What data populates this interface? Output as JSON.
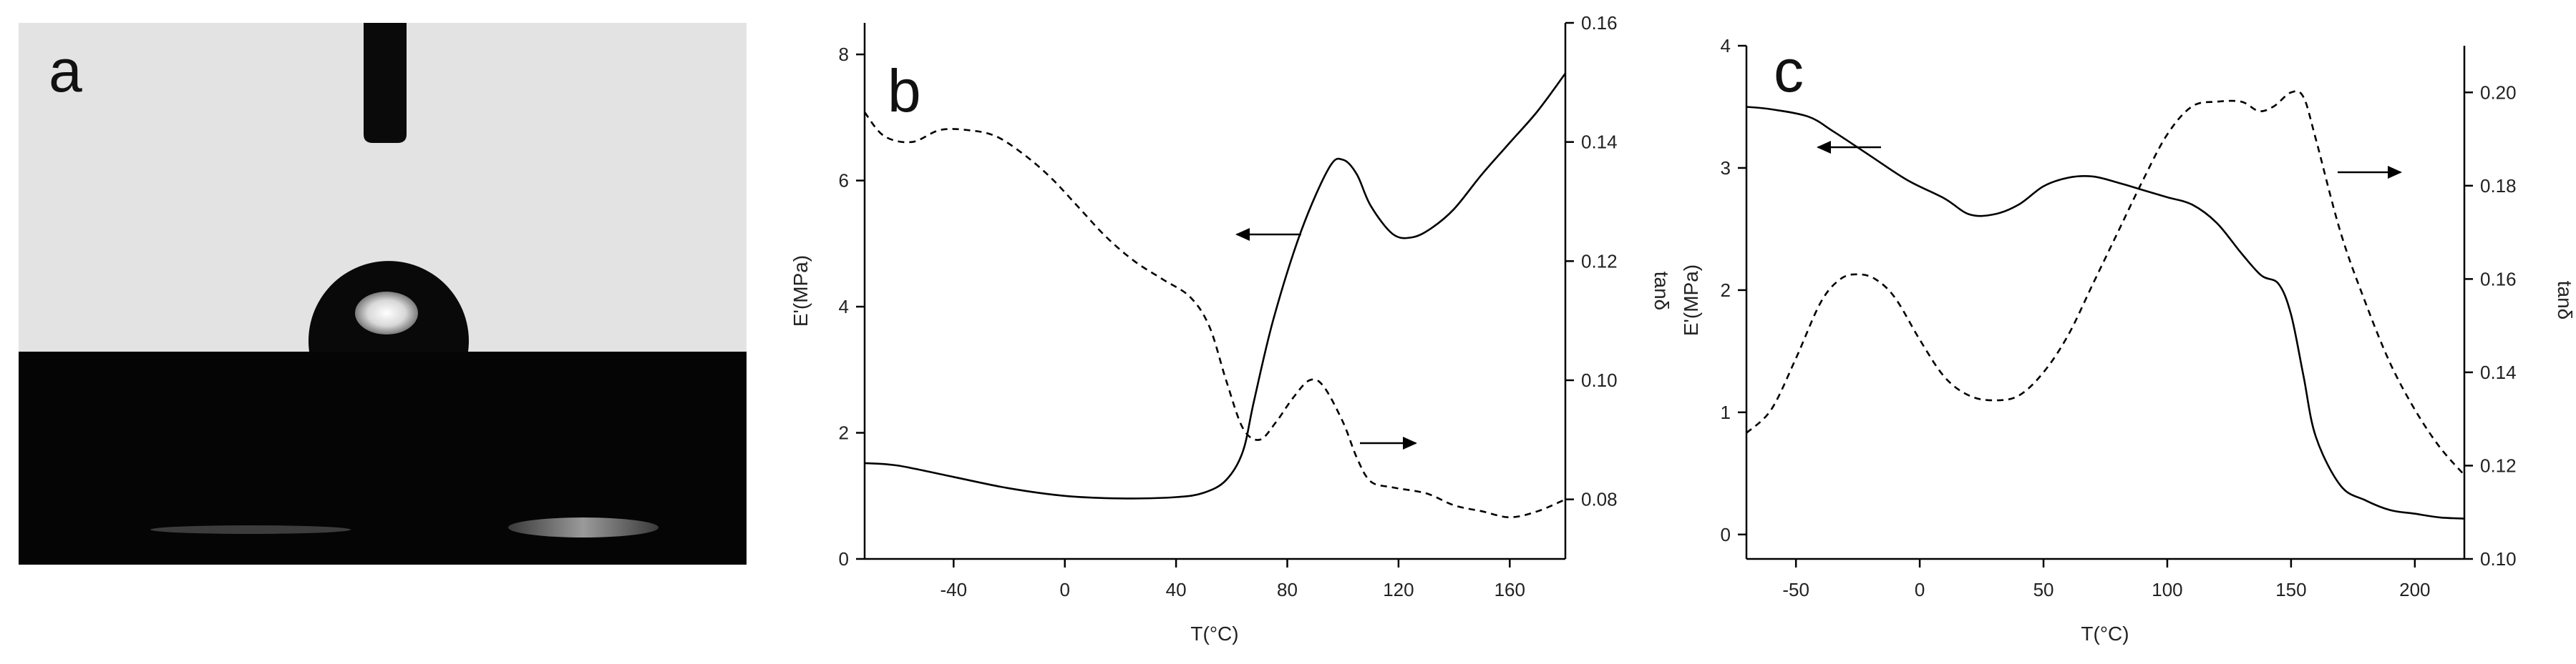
{
  "panels": {
    "a": {
      "label": "a"
    },
    "b": {
      "label": "b"
    },
    "c": {
      "label": "c"
    }
  },
  "colors": {
    "line": "#000000",
    "image_bg": "#e3e3e3",
    "substrate": "#050505"
  },
  "chart_data": [
    {
      "id": "b",
      "type": "line",
      "title": "",
      "xlabel": "T(°C)",
      "ylabel": "E'(MPa)",
      "y2label": "tanδ",
      "xlim": [
        -72,
        180
      ],
      "ylim": [
        0,
        8.5
      ],
      "y2lim": [
        0.07,
        0.16
      ],
      "xticks": [
        -40,
        0,
        40,
        80,
        120,
        160
      ],
      "yticks": [
        0,
        2,
        4,
        6,
        8
      ],
      "y2ticks": [
        0.08,
        0.1,
        0.12,
        0.14,
        0.16
      ],
      "y2tick_labels": [
        "0.08",
        "0.10",
        "0.12",
        "0.14",
        "0.16"
      ],
      "series": [
        {
          "axis": "left",
          "style": "solid",
          "x": [
            -72,
            -60,
            -40,
            -20,
            0,
            20,
            40,
            50,
            58,
            64,
            68,
            75,
            85,
            95,
            100,
            105,
            110,
            118,
            125,
            132,
            140,
            150,
            160,
            170,
            180
          ],
          "y": [
            1.52,
            1.48,
            1.3,
            1.12,
            1.0,
            0.96,
            0.98,
            1.05,
            1.25,
            1.7,
            2.5,
            3.8,
            5.2,
            6.2,
            6.33,
            6.1,
            5.6,
            5.15,
            5.1,
            5.25,
            5.55,
            6.1,
            6.6,
            7.1,
            7.7
          ]
        },
        {
          "axis": "right",
          "style": "dashed",
          "x": [
            -72,
            -65,
            -55,
            -45,
            -35,
            -25,
            -15,
            -5,
            5,
            15,
            25,
            35,
            45,
            52,
            58,
            64,
            70,
            76,
            82,
            88,
            93,
            100,
            105,
            110,
            118,
            130,
            140,
            150,
            160,
            170,
            180
          ],
          "y": [
            0.145,
            0.141,
            0.14,
            0.142,
            0.142,
            0.141,
            0.138,
            0.134,
            0.129,
            0.124,
            0.12,
            0.117,
            0.114,
            0.109,
            0.1,
            0.092,
            0.09,
            0.093,
            0.097,
            0.1,
            0.099,
            0.093,
            0.087,
            0.083,
            0.082,
            0.081,
            0.079,
            0.078,
            0.077,
            0.078,
            0.08
          ]
        }
      ]
    },
    {
      "id": "c",
      "type": "line",
      "title": "",
      "xlabel": "T(°C)",
      "ylabel": "E'(MPa)",
      "y2label": "tanδ",
      "xlim": [
        -70,
        220
      ],
      "ylim": [
        -0.2,
        4
      ],
      "y2lim": [
        0.1,
        0.21
      ],
      "xticks": [
        -50,
        0,
        50,
        100,
        150,
        200
      ],
      "yticks": [
        0,
        1,
        2,
        3,
        4
      ],
      "y2ticks": [
        0.1,
        0.12,
        0.14,
        0.16,
        0.18,
        0.2
      ],
      "y2tick_labels": [
        "0.10",
        "0.12",
        "0.14",
        "0.16",
        "0.18",
        "0.20"
      ],
      "series": [
        {
          "axis": "left",
          "style": "solid",
          "x": [
            -70,
            -60,
            -45,
            -35,
            -20,
            -5,
            10,
            20,
            30,
            40,
            50,
            60,
            70,
            80,
            90,
            100,
            110,
            120,
            130,
            138,
            145,
            150,
            155,
            160,
            170,
            180,
            190,
            200,
            210,
            220
          ],
          "y": [
            3.5,
            3.48,
            3.42,
            3.3,
            3.1,
            2.9,
            2.75,
            2.62,
            2.62,
            2.7,
            2.85,
            2.92,
            2.93,
            2.88,
            2.82,
            2.76,
            2.7,
            2.55,
            2.3,
            2.12,
            2.05,
            1.8,
            1.3,
            0.8,
            0.4,
            0.28,
            0.2,
            0.17,
            0.14,
            0.13
          ]
        },
        {
          "axis": "right",
          "style": "dashed",
          "x": [
            -70,
            -60,
            -50,
            -40,
            -32,
            -25,
            -18,
            -10,
            0,
            10,
            20,
            30,
            40,
            50,
            60,
            70,
            80,
            90,
            100,
            110,
            120,
            130,
            137,
            143,
            150,
            155,
            160,
            170,
            180,
            190,
            200,
            210,
            220
          ],
          "y": [
            0.127,
            0.132,
            0.143,
            0.155,
            0.16,
            0.161,
            0.16,
            0.156,
            0.147,
            0.139,
            0.135,
            0.134,
            0.135,
            0.14,
            0.148,
            0.159,
            0.17,
            0.181,
            0.191,
            0.197,
            0.198,
            0.198,
            0.196,
            0.197,
            0.2,
            0.199,
            0.19,
            0.17,
            0.155,
            0.142,
            0.132,
            0.124,
            0.118
          ]
        }
      ]
    }
  ]
}
